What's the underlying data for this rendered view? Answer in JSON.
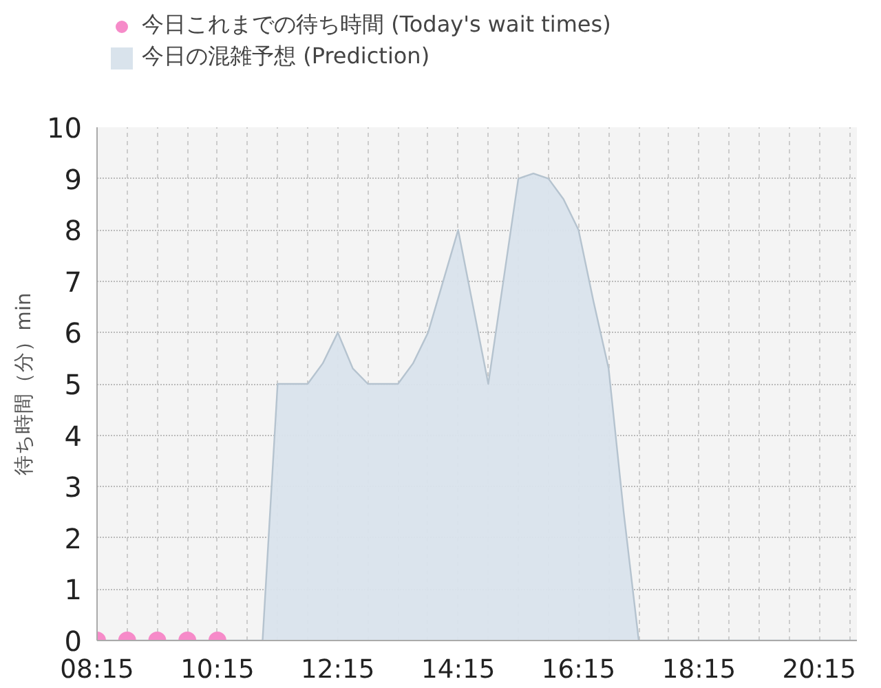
{
  "chart_data": {
    "type": "area",
    "ylabel": "待ち時間（分）min",
    "xlim": [
      8.25,
      20.875
    ],
    "ylim": [
      0,
      10
    ],
    "xticks": [
      {
        "value": 8.25,
        "label": "08:15"
      },
      {
        "value": 8.75,
        "label": null
      },
      {
        "value": 9.25,
        "label": null
      },
      {
        "value": 9.75,
        "label": null
      },
      {
        "value": 10.25,
        "label": "10:15"
      },
      {
        "value": 10.75,
        "label": null
      },
      {
        "value": 11.25,
        "label": null
      },
      {
        "value": 11.75,
        "label": null
      },
      {
        "value": 12.25,
        "label": "12:15"
      },
      {
        "value": 12.75,
        "label": null
      },
      {
        "value": 13.25,
        "label": null
      },
      {
        "value": 13.75,
        "label": null
      },
      {
        "value": 14.25,
        "label": "14:15"
      },
      {
        "value": 14.75,
        "label": null
      },
      {
        "value": 15.25,
        "label": null
      },
      {
        "value": 15.75,
        "label": null
      },
      {
        "value": 16.25,
        "label": "16:15"
      },
      {
        "value": 16.75,
        "label": null
      },
      {
        "value": 17.25,
        "label": null
      },
      {
        "value": 17.75,
        "label": null
      },
      {
        "value": 18.25,
        "label": "18:15"
      },
      {
        "value": 18.75,
        "label": null
      },
      {
        "value": 19.25,
        "label": null
      },
      {
        "value": 19.75,
        "label": null
      },
      {
        "value": 20.25,
        "label": "20:15"
      },
      {
        "value": 20.75,
        "label": null
      }
    ],
    "yticks": [
      0,
      1,
      2,
      3,
      4,
      5,
      6,
      7,
      8,
      9,
      10
    ],
    "grid": true,
    "legend": "top",
    "series": [
      {
        "name": "今日これまでの待ち時間 (Today's wait times)",
        "type": "scatter",
        "marker": "circle",
        "color": "#f68bc9",
        "x": [
          8.25,
          8.75,
          9.25,
          9.75,
          10.25
        ],
        "values": [
          0,
          0,
          0,
          0,
          0
        ]
      },
      {
        "name": "今日の混雑予想 (Prediction)",
        "color": "#d9e3ec",
        "x": [
          8.25,
          10.75,
          11.0,
          11.25,
          11.5,
          11.75,
          12.0,
          12.25,
          12.5,
          12.75,
          13.0,
          13.25,
          13.5,
          13.75,
          14.0,
          14.25,
          14.5,
          14.75,
          15.0,
          15.25,
          15.5,
          15.75,
          16.0,
          16.25,
          16.5,
          16.75,
          17.0,
          17.25,
          20.875
        ],
        "values": [
          0,
          0,
          0,
          5,
          5,
          5,
          5.4,
          6,
          5.3,
          5,
          5,
          5,
          5.4,
          6,
          7,
          8,
          6.5,
          5,
          7,
          9,
          9.1,
          9,
          8.6,
          8,
          6.6,
          5.3,
          2.5,
          0,
          0
        ]
      }
    ]
  }
}
